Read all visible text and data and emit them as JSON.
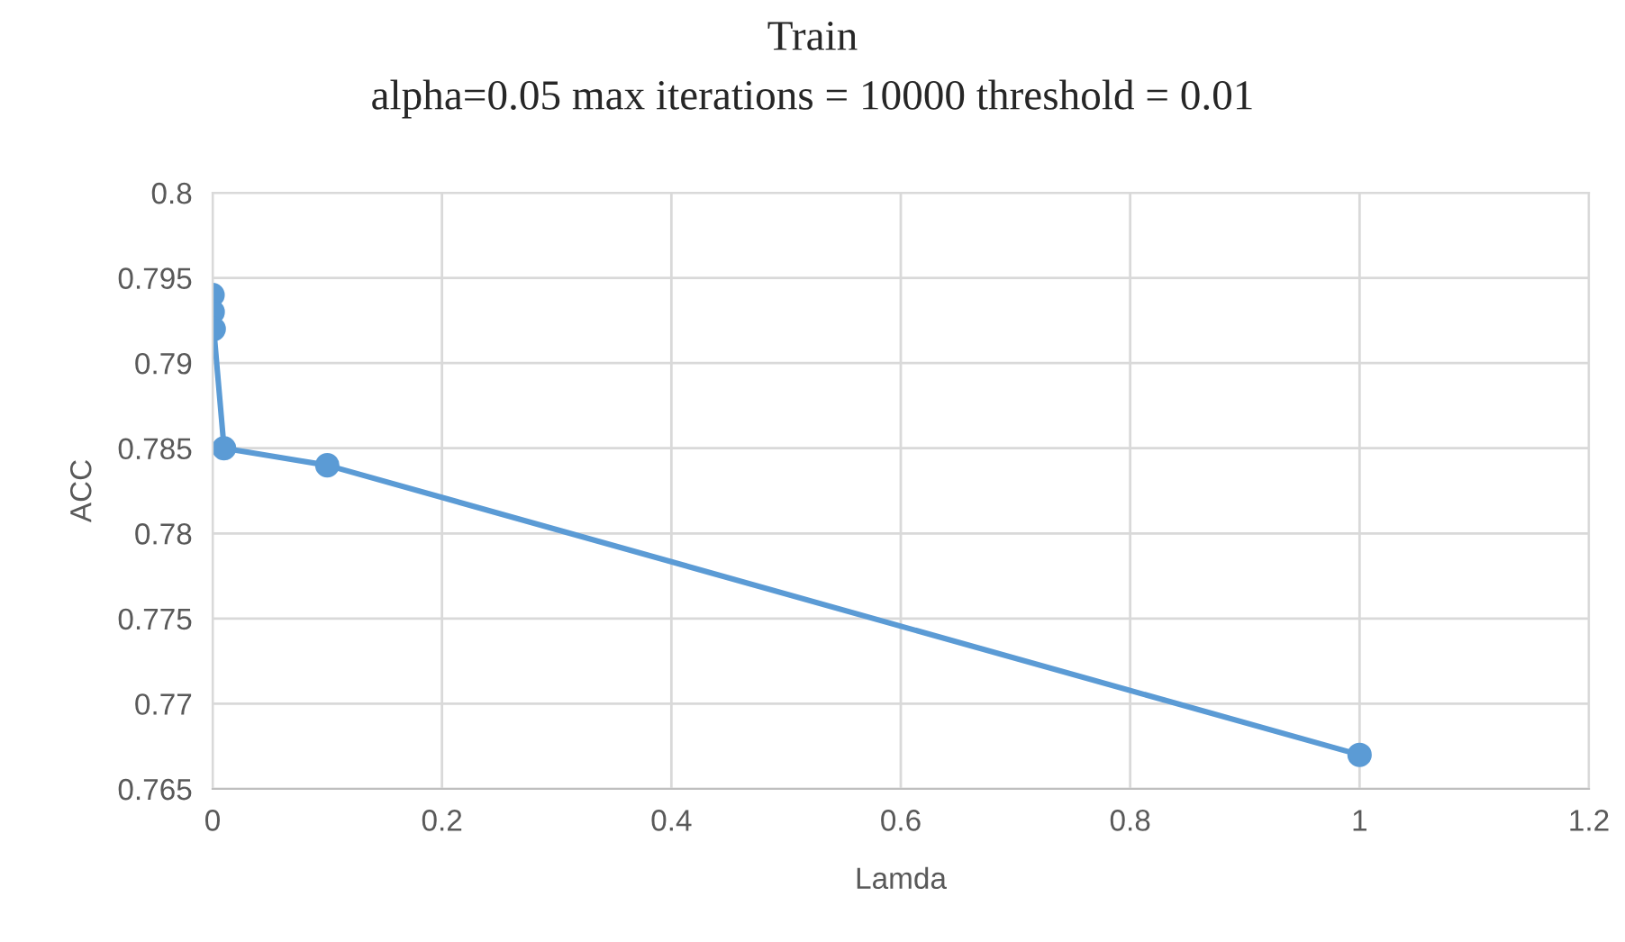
{
  "chart_data": {
    "type": "line",
    "title": "Train",
    "subtitle": "alpha=0.05 max iterations = 10000 threshold = 0.01",
    "xlabel": "Lamda",
    "ylabel": "ACC",
    "x": [
      0,
      0.0001,
      0.001,
      0.01,
      0.1,
      1
    ],
    "series": [
      {
        "color": "#5b9bd5",
        "values": [
          0.794,
          0.793,
          0.792,
          0.785,
          0.784,
          0.767
        ]
      }
    ],
    "xlim": [
      0,
      1.2
    ],
    "xticks": [
      0,
      0.2,
      0.4,
      0.6,
      0.8,
      1,
      1.2
    ],
    "ylim": [
      0.765,
      0.8
    ],
    "yticks": [
      0.765,
      0.77,
      0.775,
      0.78,
      0.785,
      0.79,
      0.795,
      0.8
    ],
    "grid": true,
    "marker": "circle",
    "line_style": "solid",
    "legend": false
  }
}
